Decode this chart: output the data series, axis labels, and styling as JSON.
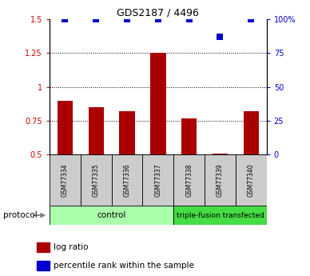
{
  "title": "GDS2187 / 4496",
  "samples": [
    "GSM77334",
    "GSM77335",
    "GSM77336",
    "GSM77337",
    "GSM77338",
    "GSM77339",
    "GSM77340"
  ],
  "log_ratio": [
    0.9,
    0.85,
    0.82,
    1.25,
    0.77,
    0.505,
    0.82
  ],
  "percentile_rank": [
    100,
    100,
    100,
    100,
    100,
    87,
    100
  ],
  "ylim_left": [
    0.5,
    1.5
  ],
  "ylim_right": [
    0,
    100
  ],
  "yticks_left": [
    0.5,
    0.75,
    1.0,
    1.25,
    1.5
  ],
  "yticks_right": [
    0,
    25,
    50,
    75,
    100
  ],
  "ytick_labels_left": [
    "0.5",
    "0.75",
    "1",
    "1.25",
    "1.5"
  ],
  "ytick_labels_right": [
    "0",
    "25",
    "50",
    "75",
    "100%"
  ],
  "hlines": [
    0.75,
    1.0,
    1.25
  ],
  "bar_color": "#AA0000",
  "dot_color": "#0000CC",
  "control_label": "control",
  "transfected_label": "triple-fusion transfected",
  "control_indices": [
    0,
    1,
    2,
    3
  ],
  "transfected_indices": [
    4,
    5,
    6
  ],
  "protocol_label": "protocol",
  "legend_bar_label": "log ratio",
  "legend_dot_label": "percentile rank within the sample",
  "control_bg": "#AAFFAA",
  "transfected_bg": "#44DD44",
  "sample_bg": "#CCCCCC",
  "bar_width": 0.5,
  "dot_size": 30
}
